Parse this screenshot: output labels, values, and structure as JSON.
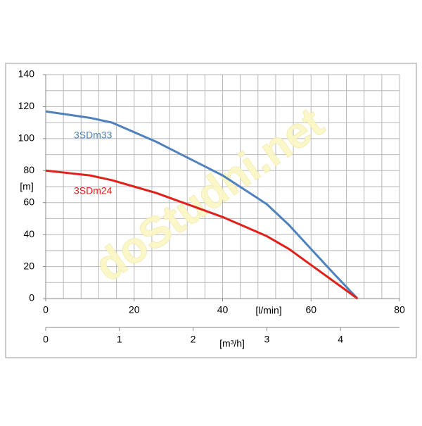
{
  "chart_data": {
    "type": "line",
    "watermark": "doStudni.net",
    "x_label": "[l/min]",
    "y_label": "[m]",
    "x2_label": "[m³/h]",
    "x": [
      0,
      5,
      10,
      15,
      20,
      25,
      30,
      35,
      40,
      45,
      50,
      55,
      60,
      65,
      70.5
    ],
    "series": [
      {
        "name": "3SDm33",
        "color": "#4f81bd",
        "values": [
          117,
          115,
          113,
          110,
          104,
          98,
          91,
          84,
          77,
          68,
          59,
          46,
          31,
          16,
          0
        ]
      },
      {
        "name": "3SDm24",
        "color": "#e0201a",
        "values": [
          80,
          78.5,
          77,
          74,
          70,
          66,
          61,
          56,
          51,
          45,
          39,
          31,
          21,
          11,
          0
        ]
      }
    ],
    "xlim": [
      0,
      80
    ],
    "xticks": [
      0,
      20,
      40,
      60,
      80
    ],
    "ylim": [
      0,
      140
    ],
    "yticks": [
      0,
      20,
      40,
      60,
      80,
      100,
      120,
      140
    ],
    "x2lim": [
      0,
      4.8
    ],
    "x2ticks": [
      0,
      1,
      2,
      3,
      4
    ],
    "xgrid": [
      0,
      4,
      8,
      12,
      16,
      20,
      24,
      28,
      32,
      36,
      40,
      44,
      48,
      52,
      56,
      60,
      64,
      68,
      72,
      76,
      80
    ],
    "ygrid": [
      0,
      10,
      20,
      30,
      40,
      50,
      60,
      70,
      80,
      90,
      100,
      110,
      120,
      130,
      140
    ],
    "grid": true
  }
}
